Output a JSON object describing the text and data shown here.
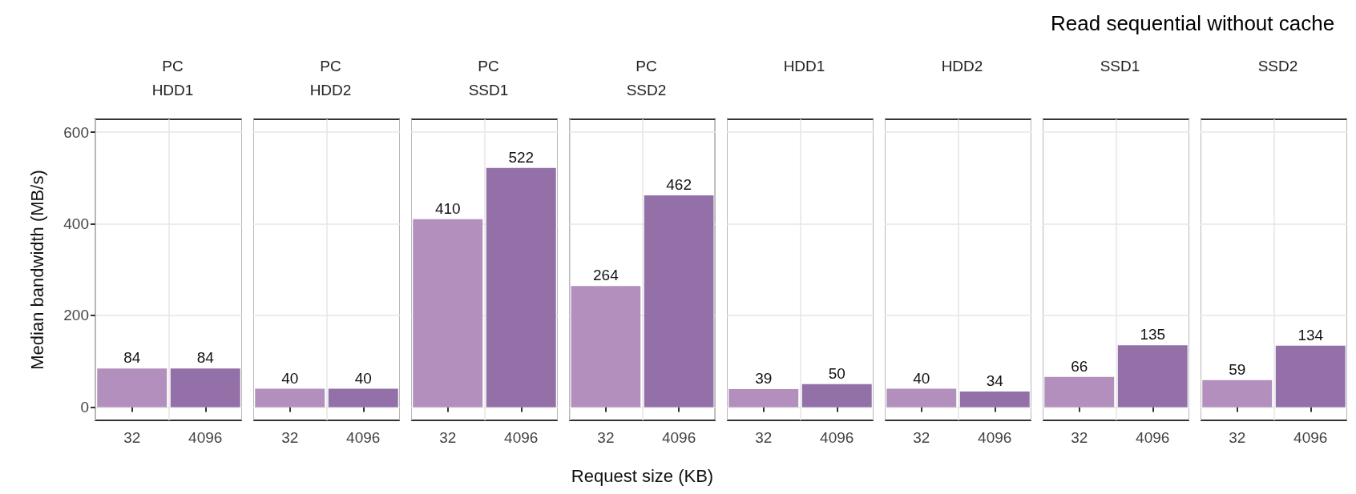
{
  "chart_data": [
    {
      "type": "bar",
      "title": "PC\nHDD1",
      "ylabel": "Median bandwidth (MB/s)",
      "categories": [
        "32",
        "4096"
      ],
      "values": [
        84,
        84
      ],
      "colors": [
        "#b28fbc",
        "#9370a8"
      ],
      "ylim": [
        -29,
        628
      ],
      "yticks": [
        0,
        200,
        400,
        600
      ],
      "grid": true,
      "data_labels": true
    },
    {
      "type": "bar",
      "title": "PC\nHDD2",
      "categories": [
        "32",
        "4096"
      ],
      "values": [
        40,
        40
      ],
      "colors": [
        "#b28fbc",
        "#9370a8"
      ],
      "ylim": [
        -29,
        628
      ],
      "yticks": [
        0,
        200,
        400,
        600
      ],
      "grid": true,
      "data_labels": true,
      "tick_labels": "x"
    },
    {
      "type": "bar",
      "title": "PC\nSSD1",
      "categories": [
        "32",
        "4096"
      ],
      "values": [
        410,
        522
      ],
      "colors": [
        "#b28fbc",
        "#9370a8"
      ],
      "ylim": [
        -29,
        628
      ],
      "yticks": [
        0,
        200,
        400,
        600
      ],
      "grid": true,
      "data_labels": true,
      "tick_labels": "x"
    },
    {
      "type": "bar",
      "title": "PC\nSSD2",
      "xlabel": "Request size (KB)",
      "categories": [
        "32",
        "4096"
      ],
      "values": [
        264,
        462
      ],
      "colors": [
        "#b28fbc",
        "#9370a8"
      ],
      "ylim": [
        -29,
        628
      ],
      "yticks": [
        0,
        200,
        400,
        600
      ],
      "grid": true,
      "data_labels": true,
      "tick_labels": "x"
    },
    {
      "type": "bar",
      "title": "HDD1",
      "categories": [
        "32",
        "4096"
      ],
      "values": [
        39,
        50
      ],
      "colors": [
        "#b28fbc",
        "#9370a8"
      ],
      "ylim": [
        -29,
        628
      ],
      "yticks": [
        0,
        200,
        400,
        600
      ],
      "grid": true,
      "data_labels": true,
      "tick_labels": "x"
    },
    {
      "type": "bar",
      "title": "HDD2",
      "categories": [
        "32",
        "4096"
      ],
      "values": [
        40,
        34
      ],
      "colors": [
        "#b28fbc",
        "#9370a8"
      ],
      "ylim": [
        -29,
        628
      ],
      "yticks": [
        0,
        200,
        400,
        600
      ],
      "grid": true,
      "data_labels": true,
      "tick_labels": "x"
    },
    {
      "type": "bar",
      "title": "SSD1",
      "categories": [
        "32",
        "4096"
      ],
      "values": [
        66,
        135
      ],
      "colors": [
        "#b28fbc",
        "#9370a8"
      ],
      "ylim": [
        -29,
        628
      ],
      "yticks": [
        0,
        200,
        400,
        600
      ],
      "grid": true,
      "data_labels": true,
      "tick_labels": "x"
    },
    {
      "type": "bar",
      "title": "SSD2",
      "annotations": [
        "Read sequential without cache"
      ],
      "categories": [
        "32",
        "4096"
      ],
      "values": [
        59,
        134
      ],
      "colors": [
        "#b28fbc",
        "#9370a8"
      ],
      "ylim": [
        -29,
        628
      ],
      "yticks": [
        0,
        200,
        400,
        600
      ],
      "grid": true,
      "data_labels": true,
      "tick_labels": "x"
    }
  ]
}
